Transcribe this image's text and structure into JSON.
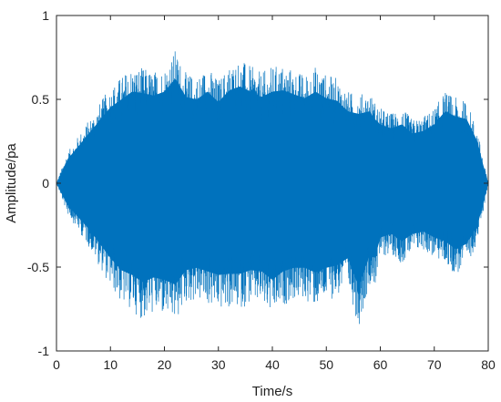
{
  "chart_data": {
    "type": "line",
    "title": "",
    "xlabel": "Time/s",
    "ylabel": "Amplitude/pa",
    "xlim": [
      0,
      80
    ],
    "ylim": [
      -1,
      1
    ],
    "x_ticks": [
      0,
      10,
      20,
      30,
      40,
      50,
      60,
      70,
      80
    ],
    "y_ticks": [
      -1,
      -0.5,
      0,
      0.5,
      1
    ],
    "grid": false,
    "legend": "none",
    "series": [
      {
        "color": "#0072bd",
        "envelope": {
          "x": [
            0,
            2,
            4,
            6,
            8,
            10,
            12,
            14,
            16,
            18,
            20,
            22,
            24,
            26,
            28,
            30,
            32,
            34,
            36,
            38,
            40,
            42,
            44,
            46,
            48,
            50,
            52,
            54,
            56,
            58,
            59,
            60,
            62,
            64,
            66,
            68,
            70,
            72,
            74,
            76,
            78,
            79,
            80
          ],
          "upper": [
            0,
            0.18,
            0.28,
            0.38,
            0.48,
            0.58,
            0.64,
            0.7,
            0.69,
            0.67,
            0.7,
            0.8,
            0.66,
            0.64,
            0.7,
            0.62,
            0.71,
            0.74,
            0.7,
            0.66,
            0.7,
            0.71,
            0.68,
            0.65,
            0.7,
            0.65,
            0.63,
            0.55,
            0.53,
            0.55,
            0.49,
            0.45,
            0.42,
            0.45,
            0.38,
            0.4,
            0.45,
            0.55,
            0.51,
            0.49,
            0.32,
            0.15,
            0
          ],
          "lower": [
            0,
            -0.18,
            -0.28,
            -0.38,
            -0.5,
            -0.62,
            -0.72,
            -0.76,
            -0.82,
            -0.78,
            -0.8,
            -0.84,
            -0.72,
            -0.7,
            -0.73,
            -0.76,
            -0.75,
            -0.75,
            -0.72,
            -0.73,
            -0.8,
            -0.73,
            -0.7,
            -0.7,
            -0.74,
            -0.7,
            -0.68,
            -0.62,
            -0.86,
            -0.6,
            -0.62,
            -0.45,
            -0.42,
            -0.48,
            -0.42,
            -0.4,
            -0.45,
            -0.48,
            -0.55,
            -0.5,
            -0.35,
            -0.18,
            0
          ]
        }
      }
    ]
  }
}
